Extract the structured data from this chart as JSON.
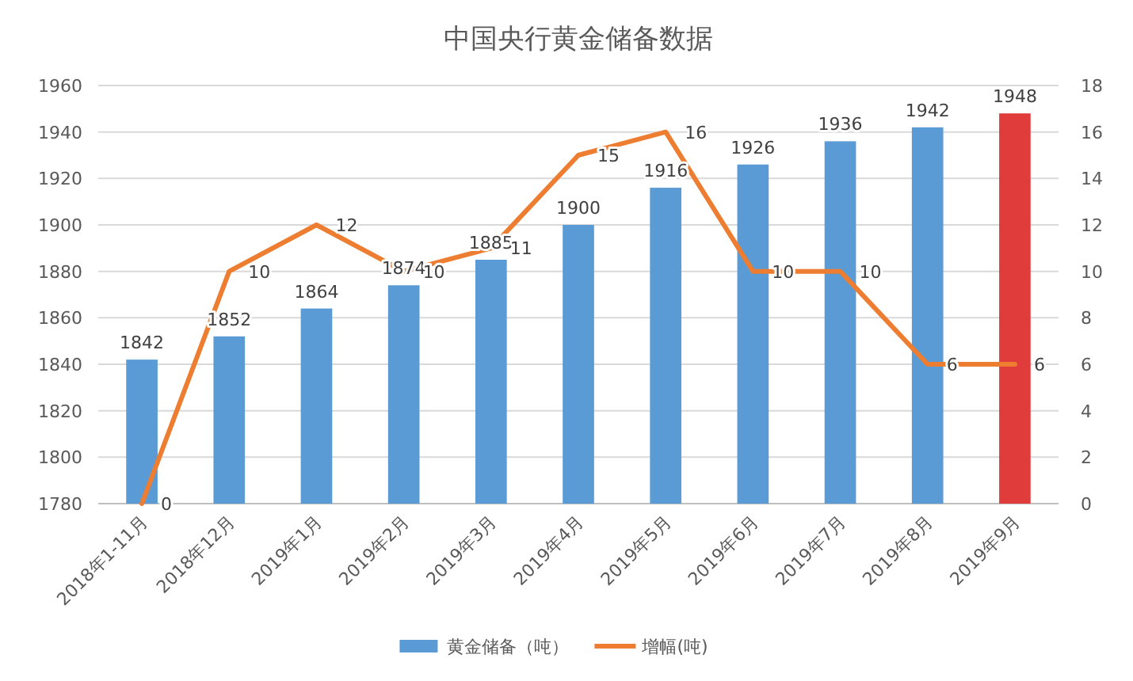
{
  "chart_data": {
    "type": "bar",
    "title": "中国央行黄金储备数据",
    "categories": [
      "2018年1-11月",
      "2018年12月",
      "2019年1月",
      "2019年2月",
      "2019年3月",
      "2019年4月",
      "2019年5月",
      "2019年6月",
      "2019年7月",
      "2019年8月",
      "2019年9月"
    ],
    "series": [
      {
        "name": "黄金储备（吨）",
        "colors": [
          "#5b9bd5",
          "#5b9bd5",
          "#5b9bd5",
          "#5b9bd5",
          "#5b9bd5",
          "#5b9bd5",
          "#5b9bd5",
          "#5b9bd5",
          "#5b9bd5",
          "#5b9bd5",
          "#e03c3c"
        ],
        "values": [
          1842,
          1852,
          1864,
          1874,
          1885,
          1900,
          1916,
          1926,
          1936,
          1942,
          1948
        ]
      },
      {
        "name": "增幅(吨)",
        "type": "line",
        "color": "#ed7d31",
        "axis": "y2",
        "values": [
          0,
          10,
          12,
          10,
          11,
          15,
          16,
          10,
          10,
          6,
          6
        ]
      }
    ],
    "ylim": [
      1780,
      1960
    ],
    "yticks": [
      1780,
      1800,
      1820,
      1840,
      1860,
      1880,
      1900,
      1920,
      1940,
      1960
    ],
    "y2lim": [
      0,
      18
    ],
    "y2ticks": [
      0,
      2,
      4,
      6,
      8,
      10,
      12,
      14,
      16,
      18
    ],
    "grid": "y",
    "legend": "bottom",
    "data_labels": true
  }
}
